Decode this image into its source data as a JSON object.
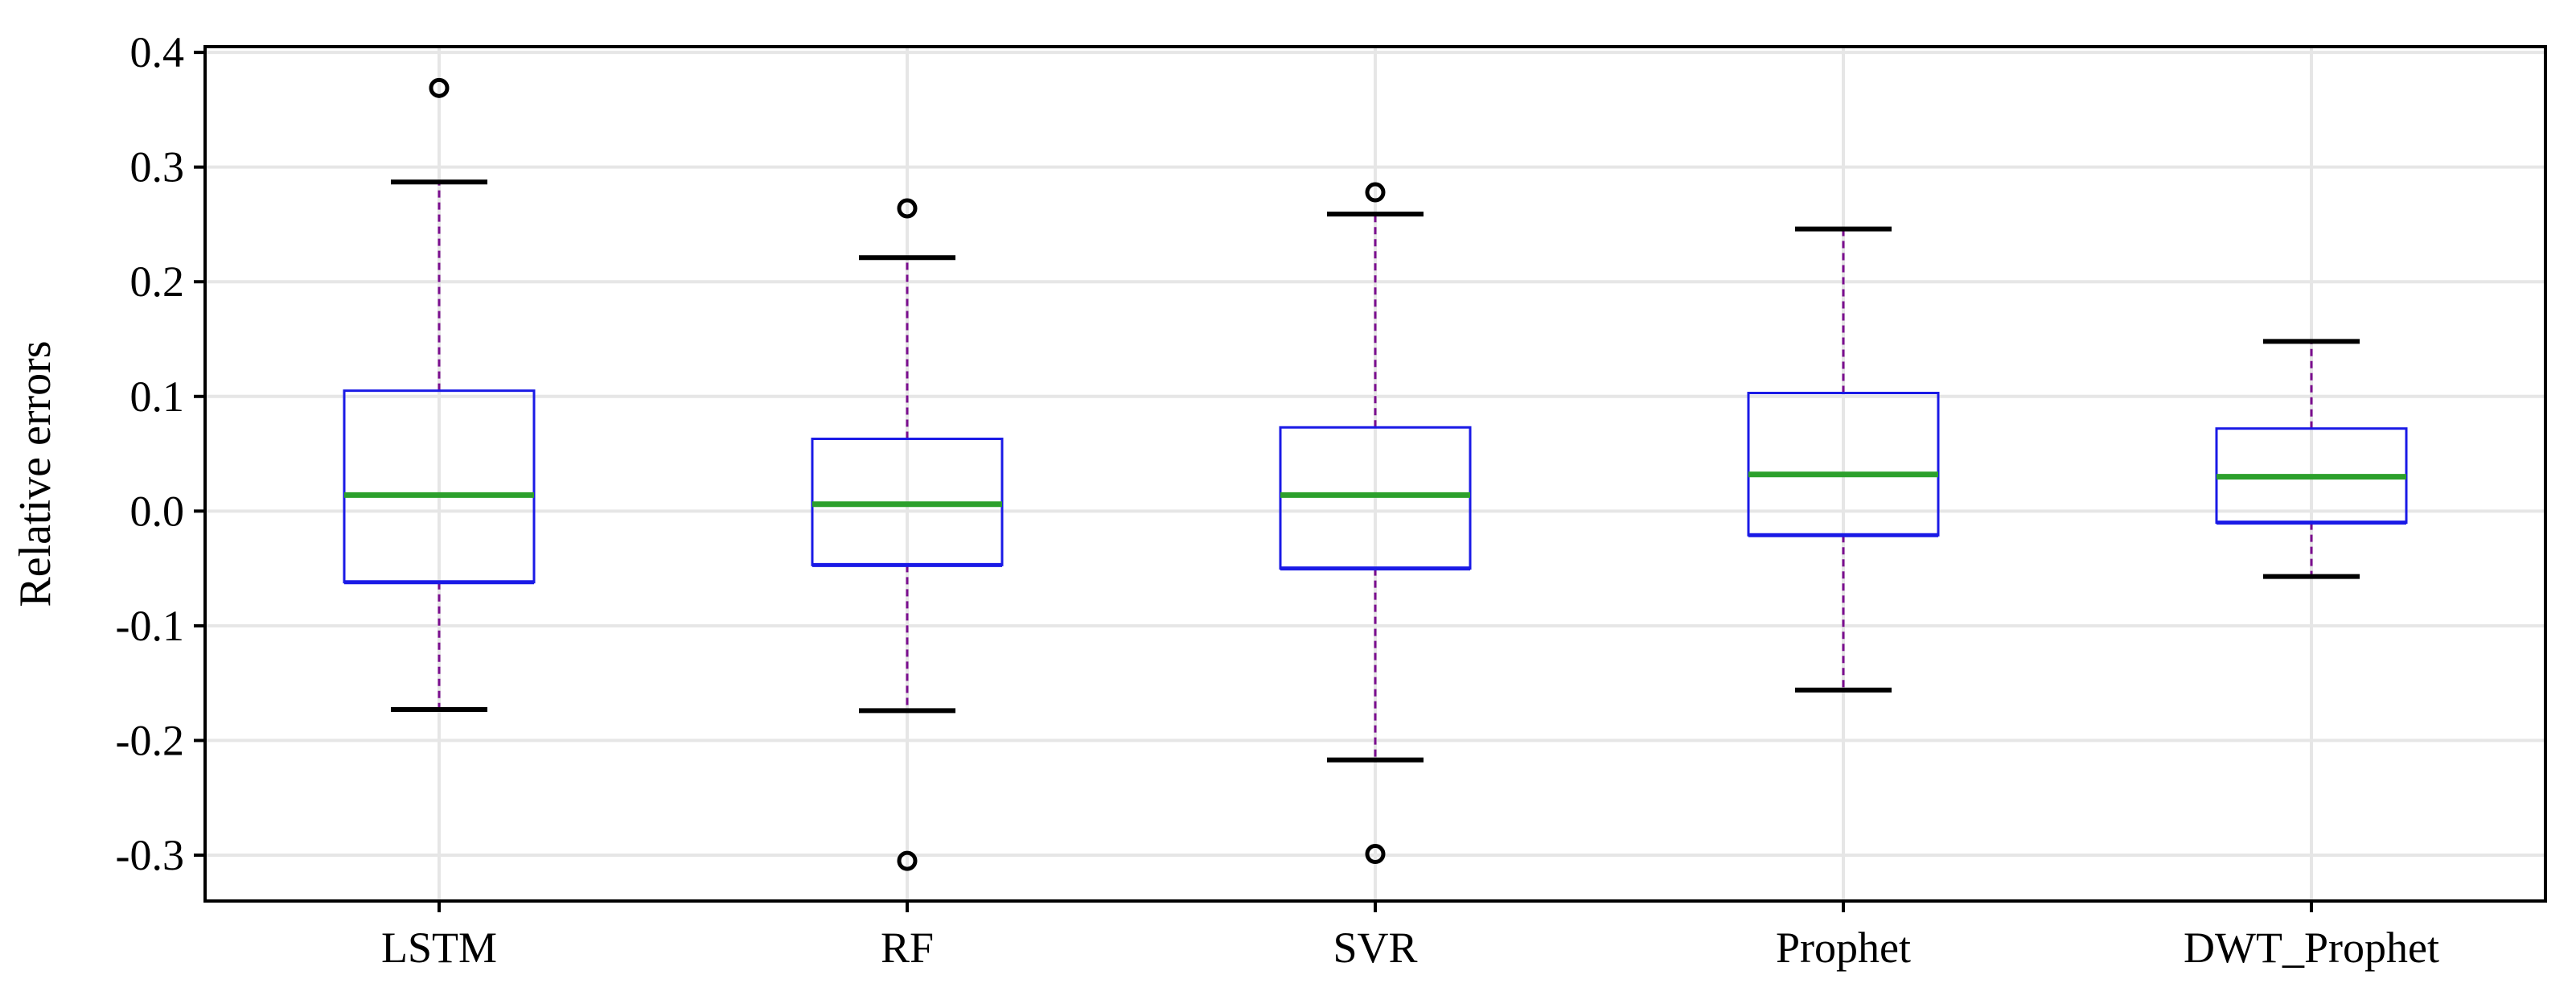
{
  "chart_data": {
    "type": "box",
    "title": "",
    "xlabel": "",
    "ylabel": "Relative errors",
    "ylim": [
      -0.34,
      0.405
    ],
    "yticks": [
      0.4,
      0.3,
      0.2,
      0.1,
      0.0,
      -0.1,
      -0.2,
      -0.3
    ],
    "ytick_labels": [
      "0.4",
      "0.3",
      "0.2",
      "0.1",
      "0.0",
      "-0.1",
      "-0.2",
      "-0.3"
    ],
    "grid": true,
    "categories": [
      "LSTM",
      "RF",
      "SVR",
      "Prophet",
      "DWT_Prophet"
    ],
    "boxes": [
      {
        "name": "LSTM",
        "whisker_low": -0.173,
        "q1": -0.062,
        "median": 0.014,
        "q3": 0.105,
        "whisker_high": 0.287,
        "outliers": [
          0.369
        ]
      },
      {
        "name": "RF",
        "whisker_low": -0.174,
        "q1": -0.047,
        "median": 0.006,
        "q3": 0.063,
        "whisker_high": 0.221,
        "outliers": [
          0.264,
          -0.305
        ]
      },
      {
        "name": "SVR",
        "whisker_low": -0.217,
        "q1": -0.05,
        "median": 0.014,
        "q3": 0.073,
        "whisker_high": 0.259,
        "outliers": [
          0.278,
          -0.299
        ]
      },
      {
        "name": "Prophet",
        "whisker_low": -0.156,
        "q1": -0.021,
        "median": 0.032,
        "q3": 0.103,
        "whisker_high": 0.246,
        "outliers": []
      },
      {
        "name": "DWT_Prophet",
        "whisker_low": -0.057,
        "q1": -0.01,
        "median": 0.03,
        "q3": 0.072,
        "whisker_high": 0.148,
        "outliers": []
      }
    ],
    "colors": {
      "box": "#1a1ae6",
      "median": "#2ca02c",
      "whisker": "#7b0e8f",
      "cap": "#000000",
      "outlier": "#000000",
      "grid": "#e6e6e6",
      "axis": "#000000"
    }
  }
}
